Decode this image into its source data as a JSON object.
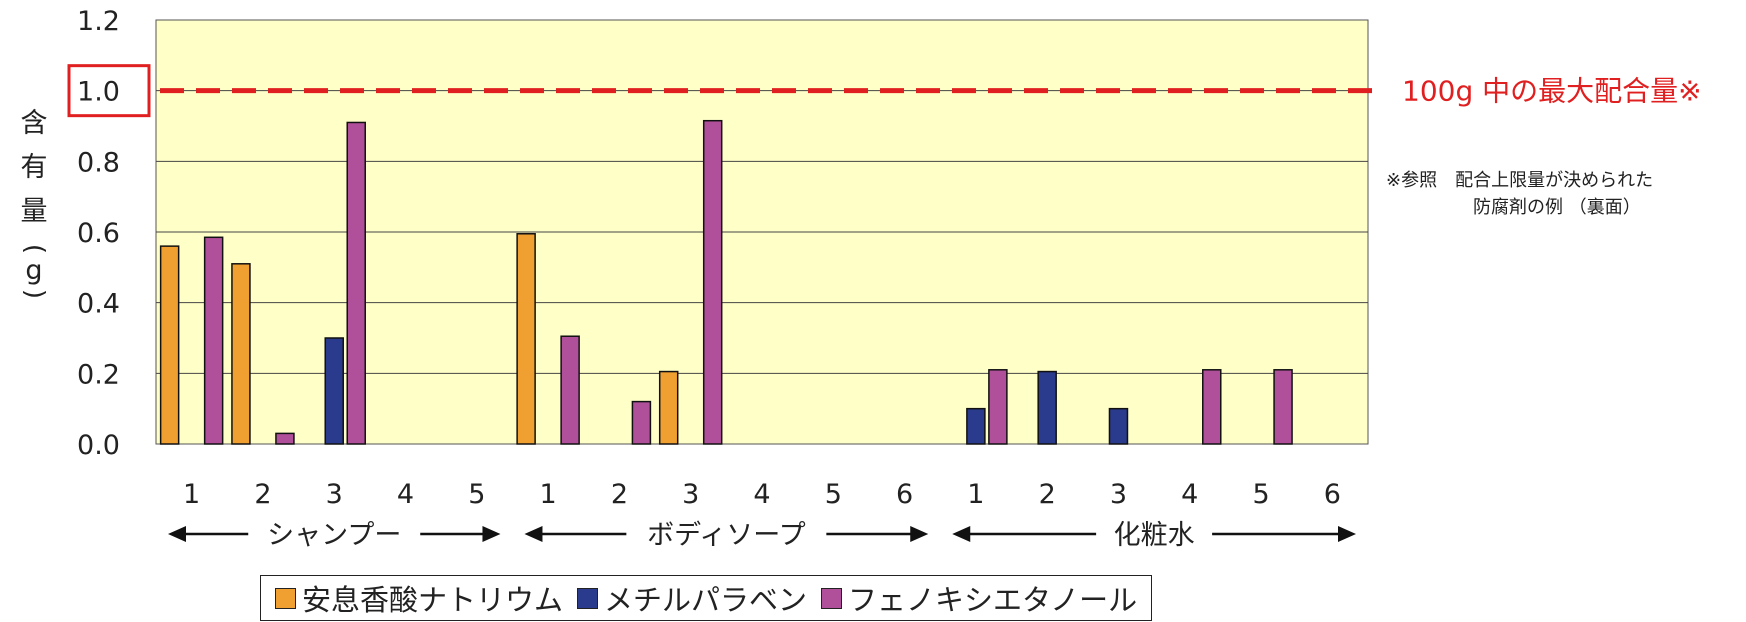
{
  "chart_data": {
    "type": "bar",
    "ylabel": "含有量（g）",
    "ylim": [
      0,
      1.2
    ],
    "yticks": [
      "0.0",
      "0.2",
      "0.4",
      "0.6",
      "0.8",
      "1.0",
      "1.2"
    ],
    "highlighted_ytick": "1.0",
    "groups": [
      {
        "name": "シャンプー",
        "categories": [
          "1",
          "2",
          "3",
          "4",
          "5"
        ]
      },
      {
        "name": "ボディソープ",
        "categories": [
          "1",
          "2",
          "3",
          "4",
          "5",
          "6"
        ]
      },
      {
        "name": "化粧水",
        "categories": [
          "1",
          "2",
          "3",
          "4",
          "5",
          "6"
        ]
      }
    ],
    "series": [
      {
        "name": "安息香酸ナトリウム",
        "color": "#F0A030",
        "values": [
          0.56,
          0.51,
          0,
          0,
          0,
          0.595,
          0,
          0.205,
          0,
          0,
          0,
          0,
          0,
          0,
          0,
          0,
          0
        ]
      },
      {
        "name": "メチルパラベン",
        "color": "#2A3A8C",
        "values": [
          0,
          0,
          0.3,
          0,
          0,
          0,
          0,
          0,
          0,
          0,
          0,
          0.1,
          0.205,
          0.1,
          0,
          0,
          0
        ]
      },
      {
        "name": "フェノキシエタノール",
        "color": "#B0509A",
        "values": [
          0.585,
          0.03,
          0.91,
          0,
          0,
          0.305,
          0.12,
          0.915,
          0,
          0,
          0,
          0.21,
          0,
          0,
          0.21,
          0.21,
          0
        ]
      }
    ],
    "reference_line": {
      "value": 1.0,
      "label": "100g 中の最大配合量※",
      "color": "#E02020"
    },
    "grid": true,
    "plot_background": "#FFFFC8"
  },
  "annotation": {
    "lines": [
      "※参照　配合上限量が決められた",
      "防腐剤の例 （裏面）"
    ]
  }
}
